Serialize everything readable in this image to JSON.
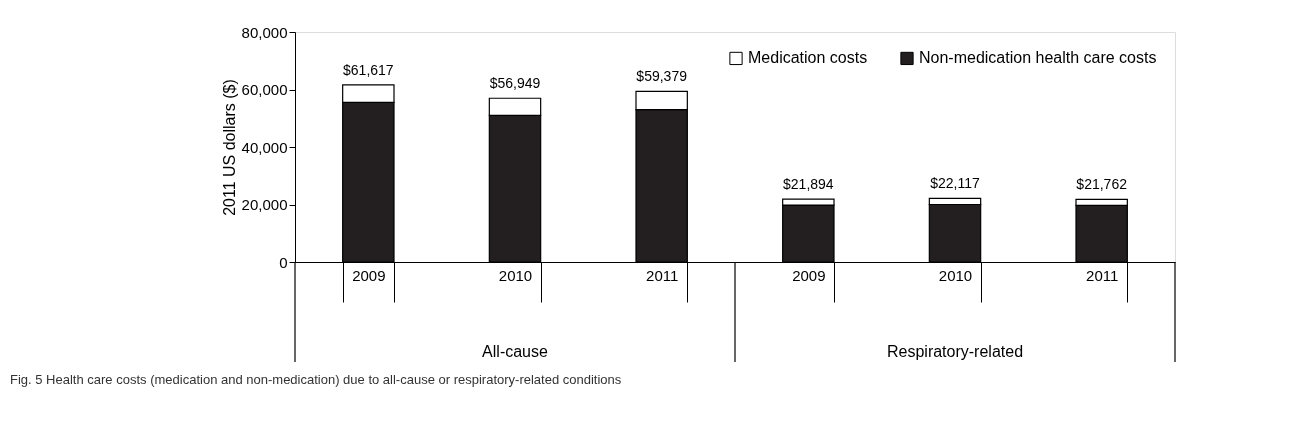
{
  "chart_data": {
    "type": "bar",
    "stacked": true,
    "ylabel": "2011 US dollars ($)",
    "categories": [
      "2009",
      "2010",
      "2011",
      "2009",
      "2010",
      "2011"
    ],
    "series": [
      {
        "name": "Non-medication health care costs",
        "color": "#231f20",
        "values": [
          55500,
          51000,
          53000,
          19800,
          20000,
          19700
        ]
      },
      {
        "name": "Medication costs",
        "color": "#ffffff",
        "values": [
          6117,
          5949,
          6379,
          2094,
          2117,
          2062
        ]
      }
    ],
    "totals": [
      "$61,617",
      "$56,949",
      "$59,379",
      "$21,894",
      "$22,117",
      "$21,762"
    ],
    "ylim": [
      0,
      80000
    ],
    "yticks": [
      {
        "value": 0,
        "label": "0"
      },
      {
        "value": 20000,
        "label": "20,000"
      },
      {
        "value": 40000,
        "label": "40,000"
      },
      {
        "value": 60000,
        "label": "60,000"
      },
      {
        "value": 80000,
        "label": "80,000"
      }
    ],
    "grid": false,
    "legend": "top right",
    "annotations": [
      "All-cause",
      "Respiratory-related",
      "Fig. 5 Health care costs (medication and non-medication) due to all-cause or respiratory-related conditions"
    ]
  }
}
